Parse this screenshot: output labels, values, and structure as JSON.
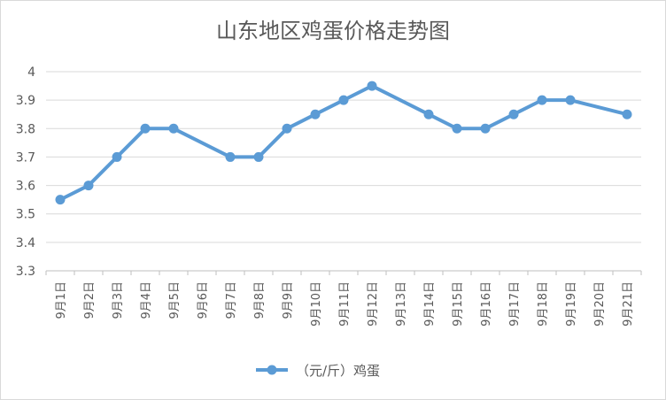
{
  "chart_data": {
    "type": "line",
    "title": "山东地区鸡蛋价格走势图",
    "categories": [
      "9月1日",
      "9月2日",
      "9月3日",
      "9月4日",
      "9月5日",
      "9月6日",
      "9月7日",
      "9月8日",
      "9月9日",
      "9月10日",
      "9月11日",
      "9月12日",
      "9月13日",
      "9月14日",
      "9月15日",
      "9月16日",
      "9月17日",
      "9月18日",
      "9月19日",
      "9月20日",
      "9月21日"
    ],
    "y_ticks": [
      "3.3",
      "3.4",
      "3.5",
      "3.6",
      "3.7",
      "3.8",
      "3.9",
      "4"
    ],
    "ylim": [
      3.3,
      4.0
    ],
    "grid": true,
    "legend_position": "bottom",
    "series": [
      {
        "name": "（元/斤）鸡蛋",
        "color": "#5b9bd5",
        "values": [
          3.55,
          3.6,
          3.7,
          3.8,
          3.8,
          null,
          3.7,
          3.7,
          3.8,
          3.85,
          3.9,
          3.95,
          null,
          3.85,
          3.8,
          3.8,
          3.85,
          3.9,
          3.9,
          null,
          3.85
        ]
      }
    ]
  }
}
